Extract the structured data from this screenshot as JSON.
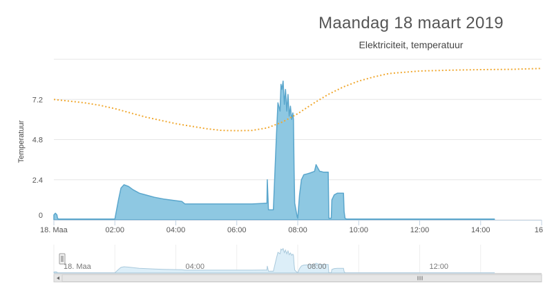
{
  "title": "Maandag 18 maart 2019",
  "subtitle": "Elektriciteit, temperatuur",
  "chart_data": {
    "type": "area",
    "title": "Maandag 18 maart 2019",
    "subtitle": "Elektriciteit, temperatuur",
    "ylabel": "Temperatuur",
    "xlabel": "",
    "xlim": [
      0,
      16
    ],
    "ylim": [
      0,
      9.6
    ],
    "x_tick_labels": [
      "18. Maa",
      "02:00",
      "04:00",
      "06:00",
      "08:00",
      "10:00",
      "12:00",
      "14:00",
      "16"
    ],
    "x_tick_values": [
      0,
      2,
      4,
      6,
      8,
      10,
      12,
      14,
      16
    ],
    "y_tick_labels": [
      "0",
      "2.4",
      "4.8",
      "7.2"
    ],
    "y_tick_values": [
      0,
      2.4,
      4.8,
      7.2
    ],
    "grid": true,
    "colors": {
      "electricity_fill": "#8ec8e2",
      "electricity_line": "#5aa6cc",
      "temperature_line": "#f0a830",
      "navigator_fill": "#dceef8"
    },
    "series": [
      {
        "kind": "area",
        "x": [
          0,
          0.05,
          0.1,
          0.12,
          0.15,
          2.0,
          2.12,
          2.2,
          2.3,
          2.45,
          2.6,
          2.8,
          3.0,
          3.3,
          3.6,
          4.0,
          4.2,
          4.3,
          5.0,
          6.0,
          6.5,
          6.99,
          7.0,
          7.04,
          7.08,
          7.1,
          7.2,
          7.3,
          7.35,
          7.42,
          7.45,
          7.48,
          7.52,
          7.56,
          7.6,
          7.64,
          7.68,
          7.72,
          7.76,
          7.8,
          7.84,
          7.86,
          7.88,
          7.9,
          7.95,
          7.98,
          8.0,
          8.06,
          8.12,
          8.2,
          8.3,
          8.4,
          8.55,
          8.6,
          8.66,
          8.72,
          8.75,
          8.85,
          9.0,
          9.02,
          9.1,
          9.12,
          9.2,
          9.3,
          9.5,
          9.52,
          9.55,
          9.6,
          10.0,
          14.45
        ],
        "y": [
          0.3,
          0.4,
          0.3,
          0.1,
          0.05,
          0.05,
          1.2,
          1.9,
          2.1,
          2.0,
          1.8,
          1.6,
          1.5,
          1.35,
          1.25,
          1.15,
          1.1,
          0.95,
          0.95,
          0.95,
          0.95,
          1.0,
          2.4,
          0.6,
          0.6,
          0.6,
          0.6,
          5.0,
          7.0,
          6.5,
          8.1,
          7.8,
          8.3,
          6.9,
          7.8,
          6.5,
          7.5,
          6.2,
          6.8,
          6.0,
          6.4,
          6.0,
          3.0,
          1.0,
          0.5,
          0.2,
          0.1,
          1.5,
          2.4,
          2.7,
          2.75,
          2.8,
          2.9,
          3.3,
          3.1,
          2.9,
          2.9,
          2.85,
          2.85,
          0.1,
          0.1,
          1.2,
          1.5,
          1.6,
          1.6,
          0.5,
          0.1,
          0.05,
          0.05,
          0.05
        ]
      },
      {
        "kind": "line",
        "x": [
          0,
          0.5,
          1.0,
          1.5,
          2.0,
          2.5,
          3.0,
          3.5,
          4.0,
          4.5,
          5.0,
          5.5,
          6.0,
          6.5,
          7.0,
          7.5,
          8.0,
          8.5,
          9.0,
          9.5,
          10.0,
          10.5,
          11.0,
          12.0,
          13.0,
          14.0,
          15.0,
          16.0
        ],
        "y": [
          7.2,
          7.1,
          7.0,
          6.85,
          6.65,
          6.4,
          6.15,
          5.95,
          5.75,
          5.6,
          5.45,
          5.35,
          5.33,
          5.35,
          5.5,
          5.85,
          6.35,
          6.95,
          7.5,
          7.95,
          8.3,
          8.55,
          8.75,
          8.9,
          8.95,
          8.98,
          9.0,
          9.05
        ]
      }
    ],
    "navigator": {
      "x_tick_labels": [
        "18. Maa",
        "04:00",
        "08:00",
        "12:00"
      ],
      "x_tick_values": [
        0,
        4,
        8,
        12
      ]
    }
  }
}
